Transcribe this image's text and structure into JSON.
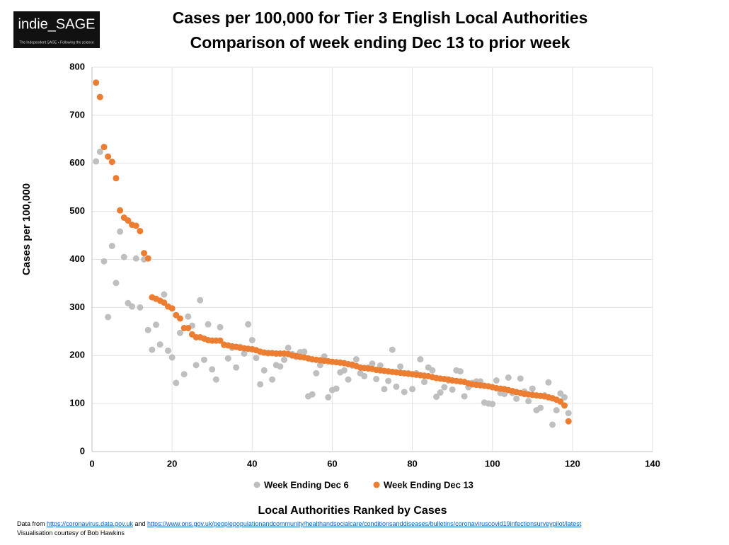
{
  "logo": {
    "name": "indie_SAGE",
    "tagline": "The Independent SAGE • Following the science"
  },
  "footer": {
    "prefix": "Data from",
    "link1": "https://coronavirus.data.gov.uk",
    "middle": "and",
    "link2": "https://www.ons.gov.uk/peoplepopulationandcommunity/healthandsocialcare/conditionsanddiseases/bulletins/coronaviruscovid19infectionsurveypilot/latest",
    "credit": "Visualisation courtesy of Bob Hawkins"
  },
  "chart_data": {
    "type": "scatter",
    "title": "Cases per 100,000 for Tier 3 English Local Authorities",
    "subtitle": "Comparison of week ending Dec 13 to prior week",
    "x_label": "Local Authorities Ranked by Cases",
    "y_label": "Cases per 100,000",
    "xlim": [
      0,
      140
    ],
    "xticks": [
      0,
      20,
      40,
      60,
      80,
      100,
      120,
      140
    ],
    "ylim": [
      0,
      800
    ],
    "yticks": [
      0,
      100,
      200,
      300,
      400,
      500,
      600,
      700,
      800
    ],
    "grid": true,
    "legend": "bottom",
    "x": [
      1,
      2,
      3,
      4,
      5,
      6,
      7,
      8,
      9,
      10,
      11,
      12,
      13,
      14,
      15,
      16,
      17,
      18,
      19,
      20,
      21,
      22,
      23,
      24,
      25,
      26,
      27,
      28,
      29,
      30,
      31,
      32,
      33,
      34,
      35,
      36,
      37,
      38,
      39,
      40,
      41,
      42,
      43,
      44,
      45,
      46,
      47,
      48,
      49,
      50,
      51,
      52,
      53,
      54,
      55,
      56,
      57,
      58,
      59,
      60,
      61,
      62,
      63,
      64,
      65,
      66,
      67,
      68,
      69,
      70,
      71,
      72,
      73,
      74,
      75,
      76,
      77,
      78,
      79,
      80,
      81,
      82,
      83,
      84,
      85,
      86,
      87,
      88,
      89,
      90,
      91,
      92,
      93,
      94,
      95,
      96,
      97,
      98,
      99,
      100,
      101,
      102,
      103,
      104,
      105,
      106,
      107,
      108,
      109,
      110,
      111,
      112,
      113,
      114,
      115,
      116,
      117,
      118,
      119
    ],
    "series": [
      {
        "name": "Week Ending Dec 6",
        "color": "#bfbfbf",
        "values": [
          604,
          624,
          396,
          280,
          428,
          351,
          458,
          405,
          309,
          302,
          402,
          300,
          400,
          253,
          212,
          264,
          223,
          327,
          210,
          196,
          143,
          247,
          161,
          281,
          262,
          180,
          315,
          191,
          265,
          171,
          150,
          259,
          223,
          194,
          216,
          175,
          218,
          204,
          265,
          232,
          195,
          140,
          169,
          205,
          150,
          180,
          177,
          191,
          216,
          203,
          197,
          207,
          208,
          115,
          119,
          163,
          180,
          198,
          113,
          128,
          131,
          165,
          169,
          150,
          179,
          192,
          163,
          157,
          175,
          183,
          151,
          179,
          130,
          147,
          212,
          135,
          177,
          124,
          163,
          130,
          163,
          192,
          145,
          175,
          169,
          114,
          123,
          134,
          148,
          129,
          169,
          167,
          115,
          134,
          143,
          146,
          146,
          102,
          100,
          99,
          148,
          122,
          120,
          154,
          122,
          110,
          152,
          125,
          105,
          131,
          86,
          91,
          117,
          144,
          56,
          86,
          121,
          113,
          80
        ]
      },
      {
        "name": "Week Ending Dec 13",
        "color": "#ed7d31",
        "values": [
          768,
          738,
          634,
          614,
          603,
          569,
          502,
          487,
          481,
          472,
          470,
          459,
          413,
          402,
          321,
          318,
          314,
          310,
          302,
          298,
          284,
          277,
          257,
          257,
          244,
          238,
          238,
          235,
          232,
          231,
          231,
          231,
          222,
          221,
          219,
          218,
          216,
          215,
          214,
          213,
          211,
          208,
          206,
          205,
          205,
          204,
          204,
          204,
          203,
          200,
          199,
          197,
          196,
          194,
          192,
          191,
          190,
          189,
          188,
          187,
          186,
          185,
          184,
          182,
          181,
          178,
          175,
          174,
          173,
          172,
          170,
          169,
          168,
          167,
          166,
          165,
          164,
          163,
          162,
          161,
          160,
          159,
          158,
          157,
          155,
          153,
          152,
          151,
          150,
          148,
          147,
          146,
          145,
          142,
          140,
          139,
          138,
          137,
          136,
          134,
          132,
          131,
          130,
          128,
          126,
          124,
          122,
          120,
          119,
          118,
          117,
          116,
          115,
          113,
          111,
          108,
          104,
          96,
          63
        ]
      }
    ]
  }
}
